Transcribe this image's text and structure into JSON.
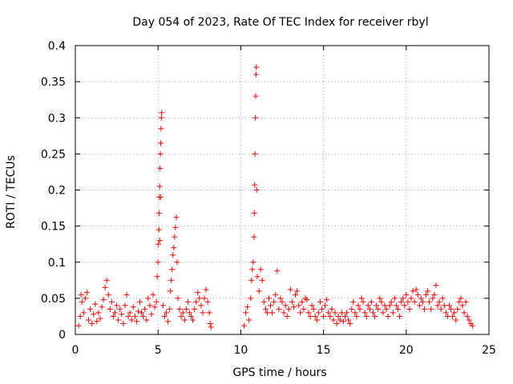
{
  "chart_data": {
    "type": "scatter",
    "title": "Day 054 of 2023, Rate Of TEC Index for receiver rbyl",
    "xlabel": "GPS time / hours",
    "ylabel": "ROTI / TECUs",
    "xlim": [
      0,
      25
    ],
    "ylim": [
      0,
      0.4
    ],
    "x_ticks": [
      0,
      5,
      10,
      15,
      20,
      25
    ],
    "x_tick_labels": [
      "0",
      "5",
      "10",
      "15",
      "20",
      "25"
    ],
    "y_ticks": [
      0,
      0.05,
      0.1,
      0.15,
      0.2,
      0.25,
      0.3,
      0.35,
      0.4
    ],
    "y_tick_labels": [
      "0",
      "0.05",
      "0.1",
      "0.15",
      "0.2",
      "0.25",
      "0.3",
      "0.35",
      "0.4"
    ],
    "grid": true,
    "marker": "+",
    "color": "#ff0000",
    "series": [
      {
        "name": "ROTI",
        "points": [
          [
            0.2,
            0.012
          ],
          [
            0.3,
            0.025
          ],
          [
            0.35,
            0.055
          ],
          [
            0.4,
            0.045
          ],
          [
            0.5,
            0.03
          ],
          [
            0.6,
            0.05
          ],
          [
            0.7,
            0.058
          ],
          [
            0.8,
            0.02
          ],
          [
            0.9,
            0.035
          ],
          [
            1.0,
            0.015
          ],
          [
            1.1,
            0.028
          ],
          [
            1.2,
            0.042
          ],
          [
            1.3,
            0.018
          ],
          [
            1.4,
            0.03
          ],
          [
            1.5,
            0.022
          ],
          [
            1.6,
            0.038
          ],
          [
            1.7,
            0.048
          ],
          [
            1.8,
            0.065
          ],
          [
            1.9,
            0.075
          ],
          [
            2.0,
            0.055
          ],
          [
            2.1,
            0.035
          ],
          [
            2.2,
            0.045
          ],
          [
            2.3,
            0.025
          ],
          [
            2.4,
            0.03
          ],
          [
            2.5,
            0.04
          ],
          [
            2.6,
            0.02
          ],
          [
            2.7,
            0.035
          ],
          [
            2.8,
            0.028
          ],
          [
            2.9,
            0.015
          ],
          [
            3.0,
            0.04
          ],
          [
            3.1,
            0.055
          ],
          [
            3.2,
            0.025
          ],
          [
            3.3,
            0.03
          ],
          [
            3.4,
            0.02
          ],
          [
            3.5,
            0.038
          ],
          [
            3.6,
            0.025
          ],
          [
            3.7,
            0.018
          ],
          [
            3.8,
            0.032
          ],
          [
            3.9,
            0.045
          ],
          [
            4.0,
            0.03
          ],
          [
            4.1,
            0.025
          ],
          [
            4.2,
            0.035
          ],
          [
            4.3,
            0.02
          ],
          [
            4.4,
            0.05
          ],
          [
            4.5,
            0.04
          ],
          [
            4.6,
            0.028
          ],
          [
            4.7,
            0.055
          ],
          [
            4.8,
            0.038
          ],
          [
            4.9,
            0.045
          ],
          [
            4.95,
            0.08
          ],
          [
            5.0,
            0.1
          ],
          [
            5.02,
            0.125
          ],
          [
            5.05,
            0.145
          ],
          [
            5.06,
            0.168
          ],
          [
            5.08,
            0.19
          ],
          [
            5.1,
            0.205
          ],
          [
            5.12,
            0.23
          ],
          [
            5.14,
            0.25
          ],
          [
            5.16,
            0.265
          ],
          [
            5.18,
            0.285
          ],
          [
            5.2,
            0.3
          ],
          [
            5.22,
            0.307
          ],
          [
            5.1,
            0.13
          ],
          [
            5.15,
            0.19
          ],
          [
            5.3,
            0.04
          ],
          [
            5.4,
            0.025
          ],
          [
            5.5,
            0.03
          ],
          [
            5.6,
            0.018
          ],
          [
            5.7,
            0.035
          ],
          [
            5.75,
            0.06
          ],
          [
            5.8,
            0.075
          ],
          [
            5.85,
            0.09
          ],
          [
            5.9,
            0.11
          ],
          [
            5.95,
            0.12
          ],
          [
            6.0,
            0.135
          ],
          [
            6.05,
            0.148
          ],
          [
            6.1,
            0.162
          ],
          [
            6.15,
            0.1
          ],
          [
            6.2,
            0.05
          ],
          [
            6.3,
            0.035
          ],
          [
            6.4,
            0.025
          ],
          [
            6.5,
            0.03
          ],
          [
            6.6,
            0.02
          ],
          [
            6.7,
            0.035
          ],
          [
            6.8,
            0.045
          ],
          [
            6.9,
            0.03
          ],
          [
            7.0,
            0.025
          ],
          [
            7.1,
            0.02
          ],
          [
            7.2,
            0.035
          ],
          [
            7.3,
            0.045
          ],
          [
            7.4,
            0.058
          ],
          [
            7.5,
            0.05
          ],
          [
            7.6,
            0.04
          ],
          [
            7.7,
            0.03
          ],
          [
            7.8,
            0.05
          ],
          [
            7.9,
            0.062
          ],
          [
            8.0,
            0.045
          ],
          [
            8.1,
            0.03
          ],
          [
            8.15,
            0.015
          ],
          [
            8.2,
            0.01
          ],
          [
            10.2,
            0.012
          ],
          [
            10.3,
            0.03
          ],
          [
            10.4,
            0.038
          ],
          [
            10.5,
            0.02
          ],
          [
            10.6,
            0.05
          ],
          [
            10.65,
            0.075
          ],
          [
            10.7,
            0.09
          ],
          [
            10.75,
            0.1
          ],
          [
            10.8,
            0.135
          ],
          [
            10.82,
            0.168
          ],
          [
            10.84,
            0.207
          ],
          [
            10.86,
            0.25
          ],
          [
            10.88,
            0.3
          ],
          [
            10.9,
            0.33
          ],
          [
            10.92,
            0.36
          ],
          [
            10.94,
            0.37
          ],
          [
            10.96,
            0.2
          ],
          [
            11.0,
            0.08
          ],
          [
            11.1,
            0.06
          ],
          [
            11.2,
            0.09
          ],
          [
            11.3,
            0.075
          ],
          [
            11.4,
            0.045
          ],
          [
            11.5,
            0.035
          ],
          [
            11.6,
            0.03
          ],
          [
            11.7,
            0.05
          ],
          [
            11.8,
            0.04
          ],
          [
            11.9,
            0.03
          ],
          [
            12.0,
            0.045
          ],
          [
            12.1,
            0.055
          ],
          [
            12.2,
            0.088
          ],
          [
            12.3,
            0.035
          ],
          [
            12.4,
            0.05
          ],
          [
            12.5,
            0.045
          ],
          [
            12.6,
            0.03
          ],
          [
            12.7,
            0.04
          ],
          [
            12.8,
            0.025
          ],
          [
            12.9,
            0.035
          ],
          [
            13.0,
            0.062
          ],
          [
            13.1,
            0.045
          ],
          [
            13.2,
            0.038
          ],
          [
            13.3,
            0.055
          ],
          [
            13.4,
            0.06
          ],
          [
            13.5,
            0.04
          ],
          [
            13.6,
            0.03
          ],
          [
            13.7,
            0.045
          ],
          [
            13.8,
            0.035
          ],
          [
            13.9,
            0.05
          ],
          [
            14.0,
            0.048
          ],
          [
            14.1,
            0.03
          ],
          [
            14.2,
            0.025
          ],
          [
            14.3,
            0.04
          ],
          [
            14.4,
            0.035
          ],
          [
            14.5,
            0.025
          ],
          [
            14.6,
            0.02
          ],
          [
            14.7,
            0.03
          ],
          [
            14.8,
            0.045
          ],
          [
            14.9,
            0.035
          ],
          [
            15.0,
            0.025
          ],
          [
            15.1,
            0.04
          ],
          [
            15.2,
            0.048
          ],
          [
            15.3,
            0.03
          ],
          [
            15.4,
            0.025
          ],
          [
            15.5,
            0.035
          ],
          [
            15.6,
            0.02
          ],
          [
            15.7,
            0.03
          ],
          [
            15.8,
            0.015
          ],
          [
            15.9,
            0.025
          ],
          [
            16.0,
            0.02
          ],
          [
            16.1,
            0.03
          ],
          [
            16.2,
            0.018
          ],
          [
            16.3,
            0.025
          ],
          [
            16.4,
            0.03
          ],
          [
            16.5,
            0.02
          ],
          [
            16.6,
            0.015
          ],
          [
            16.7,
            0.035
          ],
          [
            16.8,
            0.045
          ],
          [
            16.9,
            0.03
          ],
          [
            17.0,
            0.025
          ],
          [
            17.1,
            0.04
          ],
          [
            17.2,
            0.035
          ],
          [
            17.3,
            0.05
          ],
          [
            17.4,
            0.045
          ],
          [
            17.5,
            0.03
          ],
          [
            17.6,
            0.025
          ],
          [
            17.7,
            0.04
          ],
          [
            17.8,
            0.035
          ],
          [
            17.9,
            0.045
          ],
          [
            18.0,
            0.03
          ],
          [
            18.1,
            0.025
          ],
          [
            18.2,
            0.04
          ],
          [
            18.3,
            0.035
          ],
          [
            18.4,
            0.05
          ],
          [
            18.5,
            0.045
          ],
          [
            18.6,
            0.03
          ],
          [
            18.7,
            0.04
          ],
          [
            18.8,
            0.035
          ],
          [
            18.9,
            0.025
          ],
          [
            19.0,
            0.04
          ],
          [
            19.1,
            0.045
          ],
          [
            19.2,
            0.03
          ],
          [
            19.3,
            0.05
          ],
          [
            19.4,
            0.04
          ],
          [
            19.5,
            0.035
          ],
          [
            19.6,
            0.025
          ],
          [
            19.7,
            0.045
          ],
          [
            19.8,
            0.05
          ],
          [
            19.9,
            0.04
          ],
          [
            20.0,
            0.055
          ],
          [
            20.1,
            0.045
          ],
          [
            20.2,
            0.035
          ],
          [
            20.3,
            0.05
          ],
          [
            20.4,
            0.06
          ],
          [
            20.5,
            0.045
          ],
          [
            20.6,
            0.062
          ],
          [
            20.7,
            0.055
          ],
          [
            20.8,
            0.04
          ],
          [
            20.9,
            0.05
          ],
          [
            21.0,
            0.045
          ],
          [
            21.1,
            0.035
          ],
          [
            21.2,
            0.055
          ],
          [
            21.3,
            0.06
          ],
          [
            21.4,
            0.045
          ],
          [
            21.5,
            0.035
          ],
          [
            21.6,
            0.05
          ],
          [
            21.7,
            0.055
          ],
          [
            21.8,
            0.068
          ],
          [
            21.9,
            0.04
          ],
          [
            22.0,
            0.045
          ],
          [
            22.1,
            0.035
          ],
          [
            22.2,
            0.05
          ],
          [
            22.3,
            0.04
          ],
          [
            22.4,
            0.03
          ],
          [
            22.5,
            0.025
          ],
          [
            22.6,
            0.04
          ],
          [
            22.7,
            0.035
          ],
          [
            22.8,
            0.025
          ],
          [
            22.9,
            0.03
          ],
          [
            23.0,
            0.02
          ],
          [
            23.1,
            0.035
          ],
          [
            23.2,
            0.045
          ],
          [
            23.3,
            0.05
          ],
          [
            23.4,
            0.04
          ],
          [
            23.5,
            0.03
          ],
          [
            23.6,
            0.045
          ],
          [
            23.7,
            0.025
          ],
          [
            23.8,
            0.02
          ],
          [
            23.9,
            0.015
          ],
          [
            24.0,
            0.012
          ]
        ]
      }
    ]
  }
}
